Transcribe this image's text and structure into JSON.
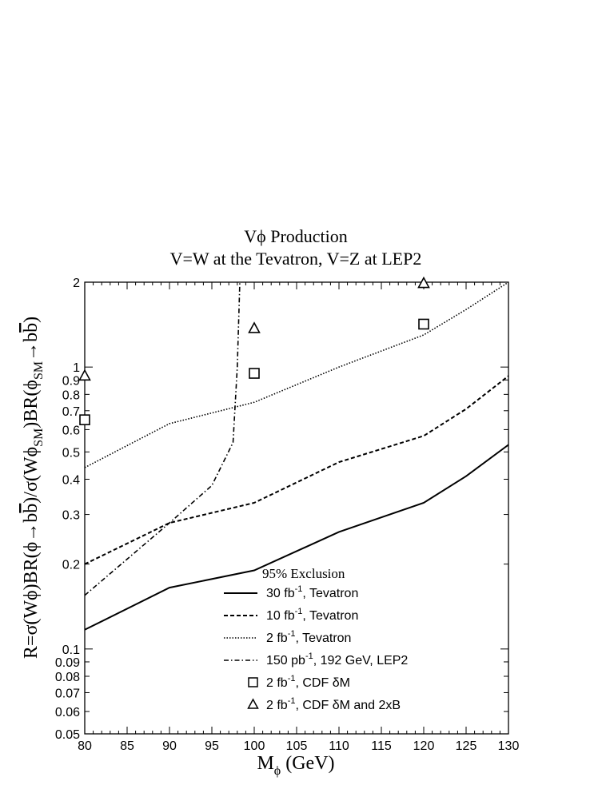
{
  "chart_data": {
    "type": "line",
    "title": "Vϕ Production",
    "subtitle": "V=W at the Tevatron, V=Z at LEP2",
    "xlabel": {
      "main": "M",
      "sub": "ϕ",
      "unit": " (GeV)"
    },
    "ylabel": {
      "p1": "R=σ(Wϕ)BR(ϕ→b",
      "bbar1": "b",
      "p2": ")/σ(Wϕ",
      "sub1": "SM",
      "p3": ")BR(ϕ",
      "sub2": "SM",
      "p4": "→b",
      "bbar2": "b",
      "p5": ")"
    },
    "xlim": [
      80,
      130
    ],
    "ylim": [
      0.05,
      2
    ],
    "yscale": "log",
    "x_ticks": [
      80,
      85,
      90,
      95,
      100,
      105,
      110,
      115,
      120,
      125,
      130
    ],
    "x_tick_labels": [
      "80",
      "85",
      "90",
      "95",
      "100",
      "105",
      "110",
      "115",
      "120",
      "125",
      "130"
    ],
    "y_ticks": [
      0.05,
      0.06,
      0.07,
      0.08,
      0.09,
      0.1,
      0.2,
      0.3,
      0.4,
      0.5,
      0.6,
      0.7,
      0.8,
      0.9,
      1,
      2
    ],
    "y_tick_labels": [
      "0.05",
      "0.06",
      "0.07",
      "0.08",
      "0.09",
      "0.1",
      "0.2",
      "0.3",
      "0.4",
      "0.5",
      "0.6",
      "0.7",
      "0.8",
      "0.9",
      "1",
      "2"
    ],
    "series": [
      {
        "name": "30 fb-1, Tevatron",
        "style": "solid",
        "x": [
          80,
          90,
          100,
          110,
          120,
          125,
          130
        ],
        "y": [
          0.117,
          0.165,
          0.19,
          0.26,
          0.33,
          0.41,
          0.53
        ]
      },
      {
        "name": "10 fb-1, Tevatron",
        "style": "dashed",
        "x": [
          80,
          90,
          100,
          110,
          120,
          125,
          130
        ],
        "y": [
          0.2,
          0.28,
          0.33,
          0.46,
          0.57,
          0.71,
          0.93
        ]
      },
      {
        "name": "2 fb-1, Tevatron",
        "style": "dotted",
        "x": [
          80,
          90,
          100,
          110,
          120,
          125,
          130
        ],
        "y": [
          0.44,
          0.63,
          0.75,
          1.0,
          1.3,
          1.6,
          2.0
        ]
      },
      {
        "name": "150 pb-1, 192 GeV, LEP2",
        "style": "dashdot",
        "x": [
          80,
          90,
          95,
          97.5,
          98,
          98.3
        ],
        "y": [
          0.155,
          0.28,
          0.38,
          0.54,
          1.0,
          2.0
        ]
      }
    ],
    "markers": [
      {
        "name": "2 fb-1, CDF δM",
        "symbol": "square",
        "x": [
          80,
          100,
          120
        ],
        "y": [
          0.65,
          0.95,
          1.42
        ]
      },
      {
        "name": "2 fb-1, CDF δM and 2xB",
        "symbol": "triangle",
        "x": [
          80,
          100,
          120
        ],
        "y": [
          0.93,
          1.37,
          1.98
        ]
      }
    ],
    "legend": {
      "title": "95% Exclusion",
      "position": "bottom-center",
      "entries": [
        {
          "symbol": "solid",
          "lum": "30 fb",
          "exp": "-1",
          "rest": ", Tevatron"
        },
        {
          "symbol": "dashed",
          "lum": "10 fb",
          "exp": "-1",
          "rest": ", Tevatron"
        },
        {
          "symbol": "dotted",
          "lum": "2 fb",
          "exp": "-1",
          "rest": ", Tevatron"
        },
        {
          "symbol": "dashdot",
          "lum": "150 pb",
          "exp": "-1",
          "rest": ", 192 GeV, LEP2"
        },
        {
          "symbol": "square",
          "lum": "2 fb",
          "exp": "-1",
          "rest": ", CDF δM"
        },
        {
          "symbol": "triangle",
          "lum": "2 fb",
          "exp": "-1",
          "rest": ", CDF δM and 2xB"
        }
      ]
    },
    "grid": false
  }
}
